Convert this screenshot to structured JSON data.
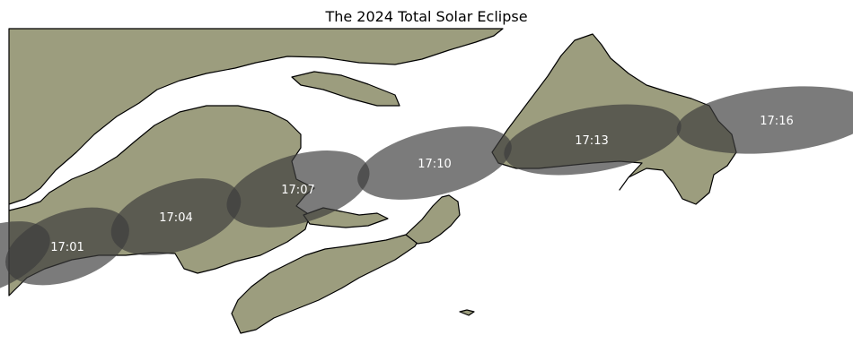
{
  "title": "The 2024 Total Solar Eclipse",
  "colors": {
    "land": "#9c9d7e",
    "coastline": "#000000",
    "water": "#ffffff",
    "shadow": "#3c3c3c",
    "label": "#ffffff"
  },
  "shadows": [
    {
      "time": "17:01"
    },
    {
      "time": "17:04"
    },
    {
      "time": "17:07"
    },
    {
      "time": "17:10"
    },
    {
      "time": "17:13"
    },
    {
      "time": "17:16"
    }
  ]
}
